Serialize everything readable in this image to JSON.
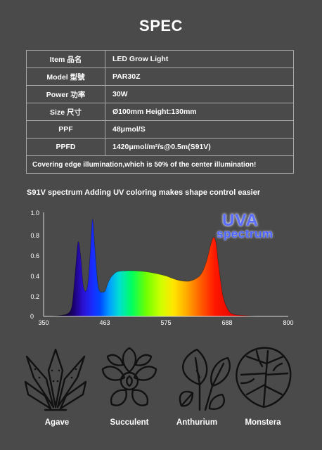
{
  "title": "SPEC",
  "spec_rows": [
    {
      "key": "Item 品名",
      "value": "LED Grow Light"
    },
    {
      "key": "Model 型號",
      "value": "PAR30Z"
    },
    {
      "key": "Power 功率",
      "value": "30W"
    },
    {
      "key": "Size 尺寸",
      "value": "Ø100mm  Height:130mm"
    },
    {
      "key": "PPF",
      "value": "48μmol/S"
    },
    {
      "key": "PPFD",
      "value": "1420μmol/m²/s@0.5m(S91V)"
    }
  ],
  "note": "Covering edge illumination,which is 50% of the center illumination!",
  "uva_badge": {
    "line1": "UVA",
    "line2": "spectrum"
  },
  "plants": [
    "Agave",
    "Succulent",
    "Anthurium",
    "Monstera"
  ],
  "chart_data": {
    "type": "area",
    "title": "S91V spectrum Adding UV coloring makes shape control easier",
    "xlabel": "",
    "ylabel": "",
    "xlim": [
      350,
      800
    ],
    "ylim": [
      0,
      1.0
    ],
    "x_ticks": [
      "350",
      "463",
      "575",
      "688",
      "800"
    ],
    "y_ticks": [
      "0",
      "0.2",
      "0.4",
      "0.6",
      "0.8",
      "1.0"
    ],
    "grid": false,
    "x": [
      350,
      380,
      395,
      402,
      406,
      410,
      414,
      419,
      423,
      428,
      432,
      436,
      440,
      444,
      449,
      453,
      458,
      463,
      467,
      471,
      476,
      485,
      500,
      520,
      540,
      560,
      575,
      590,
      605,
      620,
      635,
      643,
      650,
      656,
      662,
      667,
      672,
      680,
      690,
      700,
      720,
      750,
      800
    ],
    "y": [
      0,
      0.01,
      0.03,
      0.1,
      0.3,
      0.55,
      0.74,
      0.55,
      0.3,
      0.25,
      0.35,
      0.65,
      0.96,
      0.7,
      0.35,
      0.25,
      0.24,
      0.25,
      0.31,
      0.36,
      0.4,
      0.44,
      0.45,
      0.45,
      0.44,
      0.42,
      0.4,
      0.37,
      0.35,
      0.35,
      0.39,
      0.45,
      0.55,
      0.68,
      0.78,
      0.73,
      0.5,
      0.2,
      0.06,
      0.02,
      0.01,
      0,
      0
    ]
  }
}
